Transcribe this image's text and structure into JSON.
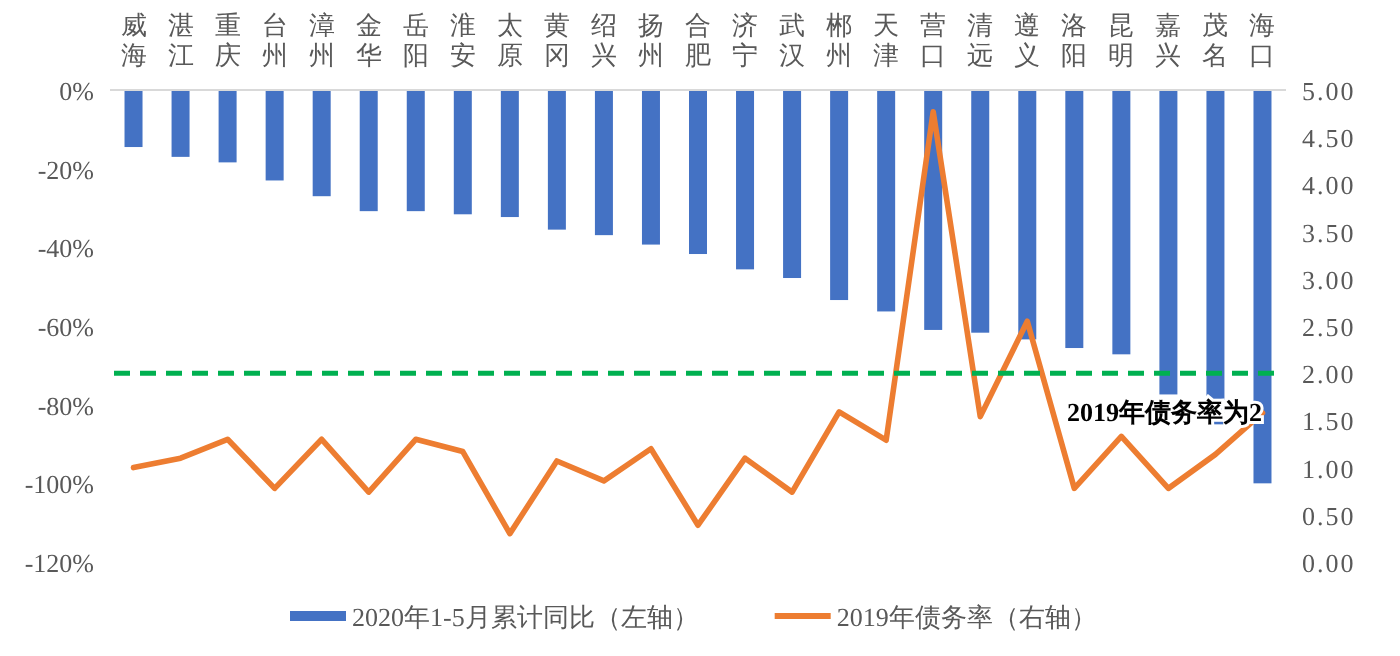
{
  "chart_data": {
    "type": "bar",
    "categories": [
      "威海",
      "湛江",
      "重庆",
      "台州",
      "漳州",
      "金华",
      "岳阳",
      "淮安",
      "太原",
      "黄冈",
      "绍兴",
      "扬州",
      "合肥",
      "济宁",
      "武汉",
      "郴州",
      "天津",
      "营口",
      "清远",
      "遵义",
      "洛阳",
      "昆明",
      "嘉兴",
      "茂名",
      "海口"
    ],
    "series": [
      {
        "name": "2020年1-5月累计同比（左轴）",
        "color": "#4472c4",
        "values": [
          -14.5,
          -17,
          -18.4,
          -23,
          -27,
          -30.8,
          -30.8,
          -31.6,
          -32.3,
          -35.5,
          -36.9,
          -39.3,
          -41.7,
          -45.6,
          -47.8,
          -53.4,
          -56.3,
          -61,
          -61.7,
          -63.4,
          -65.6,
          -67.2,
          -77.4,
          -85,
          -100
        ]
      },
      {
        "name": "2019年债务率（右轴）",
        "type": "line",
        "axis": "y2",
        "color": "#ed7d31",
        "values": [
          1.0,
          1.1,
          1.3,
          0.78,
          1.3,
          0.74,
          1.3,
          1.17,
          0.3,
          1.07,
          0.86,
          1.2,
          0.39,
          1.1,
          0.74,
          1.59,
          1.29,
          4.77,
          1.54,
          2.55,
          0.78,
          1.33,
          0.78,
          1.14,
          1.58
        ]
      }
    ],
    "ylim": [
      -120,
      0
    ],
    "yticks": [
      {
        "value": 0,
        "label": "0%"
      },
      {
        "value": -20,
        "label": "-20%"
      },
      {
        "value": -40,
        "label": "-40%"
      },
      {
        "value": -60,
        "label": "-60%"
      },
      {
        "value": -80,
        "label": "-80%"
      },
      {
        "value": -100,
        "label": "-100%"
      },
      {
        "value": -120,
        "label": "-120%"
      }
    ],
    "y2lim": [
      0,
      5
    ],
    "y2ticks": [
      {
        "value": 0,
        "label": "0.00"
      },
      {
        "value": 0.5,
        "label": "0.50"
      },
      {
        "value": 1,
        "label": "1.00"
      },
      {
        "value": 1.5,
        "label": "1.50"
      },
      {
        "value": 2,
        "label": "2.00"
      },
      {
        "value": 2.5,
        "label": "2.50"
      },
      {
        "value": 3,
        "label": "3.00"
      },
      {
        "value": 3.5,
        "label": "3.50"
      },
      {
        "value": 4,
        "label": "4.00"
      },
      {
        "value": 4.5,
        "label": "4.50"
      },
      {
        "value": 5,
        "label": "5.00"
      }
    ],
    "ref_lines": [
      {
        "axis": "y2",
        "value": 2,
        "label": "2019年债务率为2",
        "color": "#00b050",
        "line_style": "dashed"
      }
    ],
    "legend": "bottom",
    "grid": false,
    "marker": "none"
  }
}
